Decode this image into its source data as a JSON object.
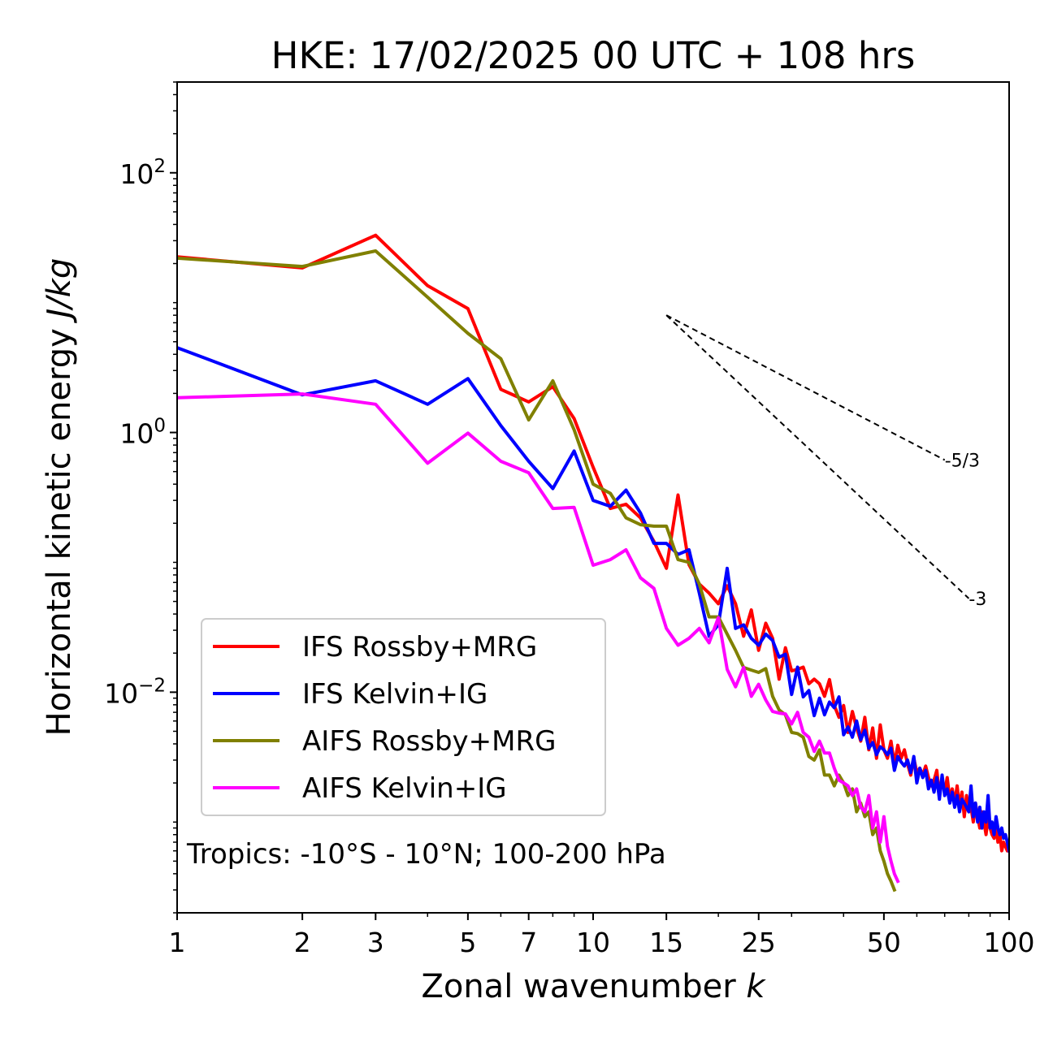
{
  "chart_data": {
    "type": "line",
    "title": "HKE: 17/02/2025 00 UTC + 108 hrs",
    "xlabel_main": "Zonal wavenumber ",
    "xlabel_italic": "k",
    "ylabel_main": "Horizontal kinetic energy ",
    "ylabel_italic": "J/kg",
    "xscale": "log",
    "yscale": "log",
    "xlim": [
      1,
      100
    ],
    "ylim": [
      0.0002,
      500
    ],
    "x_ticks": [
      {
        "value": 1,
        "label": "1"
      },
      {
        "value": 2,
        "label": "2"
      },
      {
        "value": 3,
        "label": "3"
      },
      {
        "value": 5,
        "label": "5"
      },
      {
        "value": 7,
        "label": "7"
      },
      {
        "value": 10,
        "label": "10"
      },
      {
        "value": 15,
        "label": "15"
      },
      {
        "value": 25,
        "label": "25"
      },
      {
        "value": 50,
        "label": "50"
      },
      {
        "value": 100,
        "label": "100"
      }
    ],
    "y_ticks": [
      {
        "value": 100,
        "base": "10",
        "exp": "2"
      },
      {
        "value": 1,
        "base": "10",
        "exp": "0"
      },
      {
        "value": 0.01,
        "base": "10",
        "exp": "−2"
      }
    ],
    "grid": false,
    "legend_position": "lower-left",
    "annotation": "Tropics: -10°S - 10°N; 100-200 hPa",
    "reference_lines": [
      {
        "label": "-5/3",
        "slope": -1.6667,
        "x_start": 15,
        "y_start": 8.0,
        "x_end": 70
      },
      {
        "label": "-3",
        "slope": -3,
        "x_start": 15,
        "y_start": 8.0,
        "x_end": 80
      }
    ],
    "series": [
      {
        "name": "IFS Rossby+MRG",
        "color": "#ff0000",
        "x": [
          1,
          2,
          3,
          4,
          5,
          6,
          7,
          8,
          9,
          10,
          11,
          12,
          13,
          14,
          15,
          16,
          17,
          18,
          19,
          20,
          21,
          22,
          23,
          24,
          25,
          26,
          27,
          28,
          29,
          30,
          31,
          32,
          33,
          34,
          35,
          36,
          37,
          38,
          39,
          40,
          41,
          42,
          43,
          44,
          45,
          46,
          47,
          48,
          49,
          50,
          51,
          52,
          53,
          54,
          55,
          56,
          57,
          58,
          59,
          60,
          61,
          62,
          63,
          64,
          65,
          66,
          67,
          68,
          69,
          70,
          71,
          72,
          73,
          74,
          75,
          76,
          77,
          78,
          79,
          80,
          81,
          82,
          83,
          84,
          85,
          86,
          87,
          88,
          89,
          90,
          91,
          92,
          93,
          94,
          95,
          96,
          97,
          98,
          99,
          100
        ],
        "y": [
          22.5,
          18.5,
          33,
          13.5,
          9.0,
          2.15,
          1.72,
          2.25,
          1.28,
          0.54,
          0.26,
          0.28,
          0.22,
          0.145,
          0.09,
          0.33,
          0.096,
          0.068,
          0.058,
          0.048,
          0.066,
          0.048,
          0.027,
          0.043,
          0.021,
          0.034,
          0.026,
          0.0126,
          0.022,
          0.0146,
          0.015,
          0.0156,
          0.0116,
          0.0126,
          0.0116,
          0.0093,
          0.0125,
          0.0079,
          0.0064,
          0.0079,
          0.0049,
          0.0071,
          0.0053,
          0.0042,
          0.0064,
          0.0036,
          0.0053,
          0.0031,
          0.0056,
          0.0036,
          0.0031,
          0.0042,
          0.0028,
          0.0039,
          0.0031,
          0.0036,
          0.0028,
          0.0023,
          0.0031,
          0.0024,
          0.0026,
          0.0023,
          0.0027,
          0.0022,
          0.0019,
          0.0021,
          0.0025,
          0.0016,
          0.0021,
          0.0017,
          0.0022,
          0.0015,
          0.0018,
          0.0014,
          0.0019,
          0.0013,
          0.0017,
          0.0011,
          0.0016,
          0.0012,
          0.0013,
          0.001,
          0.0014,
          0.0011,
          0.0009,
          0.0012,
          0.001,
          0.0008,
          0.0011,
          0.0009,
          0.0008,
          0.00075,
          0.0009,
          0.0007,
          0.0008,
          0.0006,
          0.0007,
          0.00065,
          0.0006,
          0.0007
        ]
      },
      {
        "name": "IFS Kelvin+IG",
        "color": "#0000ff",
        "x": [
          1,
          2,
          3,
          4,
          5,
          6,
          7,
          8,
          9,
          10,
          11,
          12,
          13,
          14,
          15,
          16,
          17,
          18,
          19,
          20,
          21,
          22,
          23,
          24,
          25,
          26,
          27,
          28,
          29,
          30,
          31,
          32,
          33,
          34,
          35,
          36,
          37,
          38,
          39,
          40,
          41,
          42,
          43,
          44,
          45,
          46,
          47,
          48,
          49,
          50,
          51,
          52,
          53,
          54,
          55,
          56,
          57,
          58,
          59,
          60,
          61,
          62,
          63,
          64,
          65,
          66,
          67,
          68,
          69,
          70,
          71,
          72,
          73,
          74,
          75,
          76,
          77,
          78,
          79,
          80,
          81,
          82,
          83,
          84,
          85,
          86,
          87,
          88,
          89,
          90,
          91,
          92,
          93,
          94,
          95,
          96,
          97,
          98,
          99,
          100
        ],
        "y": [
          4.5,
          1.95,
          2.5,
          1.65,
          2.6,
          1.13,
          0.6,
          0.37,
          0.72,
          0.3,
          0.27,
          0.36,
          0.24,
          0.14,
          0.14,
          0.115,
          0.125,
          0.058,
          0.027,
          0.033,
          0.09,
          0.031,
          0.033,
          0.026,
          0.023,
          0.028,
          0.025,
          0.0186,
          0.0196,
          0.0096,
          0.0156,
          0.0092,
          0.0103,
          0.0066,
          0.009,
          0.0067,
          0.0084,
          0.0076,
          0.0092,
          0.0047,
          0.0054,
          0.0045,
          0.006,
          0.0043,
          0.0051,
          0.0037,
          0.0041,
          0.0033,
          0.0038,
          0.0036,
          0.0033,
          0.0037,
          0.0025,
          0.0032,
          0.0029,
          0.0027,
          0.003,
          0.0024,
          0.0032,
          0.002,
          0.0026,
          0.0022,
          0.0025,
          0.0018,
          0.0021,
          0.0017,
          0.0022,
          0.0015,
          0.0023,
          0.0016,
          0.0018,
          0.0014,
          0.0017,
          0.0013,
          0.0016,
          0.0012,
          0.0015,
          0.0014,
          0.0013,
          0.0012,
          0.0019,
          0.0011,
          0.0014,
          0.001,
          0.0013,
          0.0009,
          0.0012,
          0.001,
          0.0016,
          0.0009,
          0.001,
          0.0008,
          0.0011,
          0.0009,
          0.0008,
          0.0009,
          0.00075,
          0.0008,
          0.0007,
          0.0006
        ]
      },
      {
        "name": "AIFS Rossby+MRG",
        "color": "#808000",
        "x": [
          1,
          2,
          3,
          4,
          5,
          6,
          7,
          8,
          9,
          10,
          11,
          12,
          13,
          14,
          15,
          16,
          17,
          18,
          19,
          20,
          21,
          22,
          23,
          24,
          25,
          26,
          27,
          28,
          29,
          30,
          31,
          32,
          33,
          34,
          35,
          36,
          37,
          38,
          39,
          40,
          41,
          42,
          43,
          44,
          45,
          46,
          47,
          48,
          49,
          50,
          51,
          52,
          53
        ],
        "y": [
          22,
          19,
          25,
          11,
          5.8,
          3.7,
          1.25,
          2.5,
          1.05,
          0.4,
          0.34,
          0.22,
          0.195,
          0.19,
          0.19,
          0.105,
          0.1,
          0.068,
          0.038,
          0.038,
          0.028,
          0.021,
          0.0155,
          0.0148,
          0.0142,
          0.0152,
          0.0093,
          0.0073,
          0.0067,
          0.0049,
          0.0048,
          0.0045,
          0.0032,
          0.003,
          0.0036,
          0.0023,
          0.0023,
          0.0019,
          0.0023,
          0.002,
          0.0016,
          0.0018,
          0.0012,
          0.0014,
          0.0011,
          0.0012,
          0.0008,
          0.0009,
          0.0006,
          0.0005,
          0.0004,
          0.00035,
          0.0003
        ]
      },
      {
        "name": "AIFS Kelvin+IG",
        "color": "#ff00ff",
        "x": [
          1,
          2,
          3,
          4,
          5,
          6,
          7,
          8,
          9,
          10,
          11,
          12,
          13,
          14,
          15,
          16,
          17,
          18,
          19,
          20,
          21,
          22,
          23,
          24,
          25,
          26,
          27,
          28,
          29,
          30,
          31,
          32,
          33,
          34,
          35,
          36,
          37,
          38,
          39,
          40,
          41,
          42,
          43,
          44,
          45,
          46,
          47,
          48,
          49,
          50,
          51,
          52,
          53,
          54
        ],
        "y": [
          1.85,
          1.98,
          1.65,
          0.58,
          0.99,
          0.6,
          0.49,
          0.26,
          0.265,
          0.095,
          0.105,
          0.125,
          0.076,
          0.063,
          0.031,
          0.023,
          0.026,
          0.031,
          0.024,
          0.0375,
          0.015,
          0.011,
          0.0155,
          0.0093,
          0.0115,
          0.0087,
          0.0071,
          0.0069,
          0.0068,
          0.0057,
          0.007,
          0.0049,
          0.0045,
          0.0035,
          0.0042,
          0.0034,
          0.0034,
          0.0026,
          0.0021,
          0.002,
          0.0019,
          0.0016,
          0.0018,
          0.0013,
          0.0012,
          0.0016,
          0.0009,
          0.0012,
          0.0007,
          0.0011,
          0.00065,
          0.0005,
          0.0004,
          0.00035
        ]
      }
    ]
  }
}
